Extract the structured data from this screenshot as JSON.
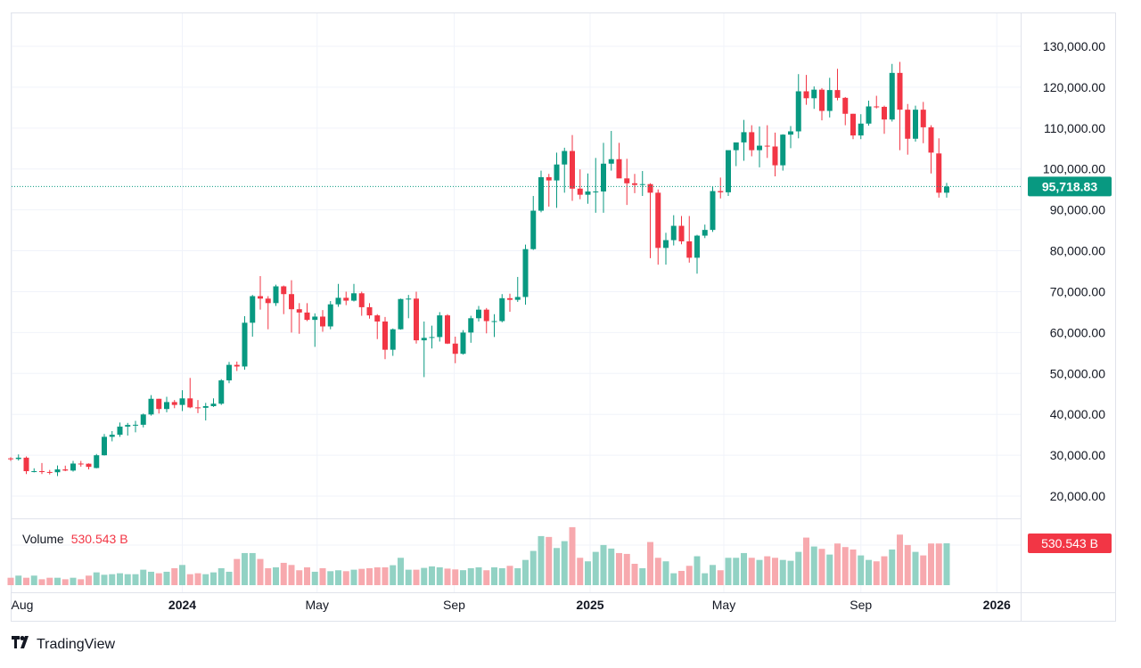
{
  "logo": {
    "text": "TradingView"
  },
  "colors": {
    "up": "#089981",
    "down": "#f23645",
    "up_volume": "#92d2c4",
    "down_volume": "#f7a9ae",
    "last_price_bg": "#089981",
    "volume_label_bg": "#f23645",
    "grid": "#f0f3fa"
  },
  "chart_data": {
    "type": "candlestick",
    "interval": "weekly",
    "y_axis": {
      "ticks": [
        "20,000.00",
        "30,000.00",
        "40,000.00",
        "50,000.00",
        "60,000.00",
        "70,000.00",
        "80,000.00",
        "90,000.00",
        "100,000.00",
        "110,000.00",
        "120,000.00",
        "130,000.00"
      ],
      "tick_values": [
        20000,
        30000,
        40000,
        50000,
        60000,
        70000,
        80000,
        90000,
        100000,
        110000,
        120000,
        130000
      ],
      "range": [
        15000,
        132000
      ]
    },
    "x_axis": {
      "ticks": [
        {
          "label": "Aug",
          "date": "2023-08-01",
          "bold": false
        },
        {
          "label": "2024",
          "date": "2024-01-01",
          "bold": true
        },
        {
          "label": "May",
          "date": "2024-05-01",
          "bold": false
        },
        {
          "label": "Sep",
          "date": "2024-09-01",
          "bold": false
        },
        {
          "label": "2025",
          "date": "2025-01-01",
          "bold": true
        },
        {
          "label": "May",
          "date": "2025-05-01",
          "bold": false
        },
        {
          "label": "Sep",
          "date": "2025-09-01",
          "bold": false
        },
        {
          "label": "2026",
          "date": "2026-01-01",
          "bold": true
        }
      ]
    },
    "last_price": 95718.83,
    "last_price_label": "95,718.83",
    "grid": true,
    "volume": {
      "label": "Volume",
      "value_label": "530.543 B",
      "unit": "B"
    },
    "candles_columns": [
      "date",
      "open",
      "high",
      "low",
      "close",
      "volume_B"
    ],
    "candles": [
      [
        "2023-07-31",
        29230,
        29500,
        28600,
        29070,
        94
      ],
      [
        "2023-08-07",
        29070,
        30200,
        28700,
        29400,
        121
      ],
      [
        "2023-08-14",
        29400,
        29690,
        25400,
        26100,
        94
      ],
      [
        "2023-08-21",
        26100,
        26800,
        25800,
        26100,
        121
      ],
      [
        "2023-08-28",
        26100,
        28100,
        25400,
        25900,
        75
      ],
      [
        "2023-09-04",
        25900,
        26400,
        25300,
        25840,
        94
      ],
      [
        "2023-09-11",
        25840,
        27500,
        24900,
        26530,
        94
      ],
      [
        "2023-09-18",
        26530,
        27450,
        26100,
        26250,
        75
      ],
      [
        "2023-09-25",
        26250,
        28600,
        26000,
        27960,
        94
      ],
      [
        "2023-10-02",
        27960,
        28600,
        27200,
        27920,
        75
      ],
      [
        "2023-10-09",
        27920,
        28000,
        26550,
        27150,
        121
      ],
      [
        "2023-10-16",
        26870,
        30300,
        26800,
        29990,
        162
      ],
      [
        "2023-10-23",
        29990,
        35200,
        29900,
        34500,
        132
      ],
      [
        "2023-10-30",
        34500,
        35900,
        33400,
        35000,
        139
      ],
      [
        "2023-11-06",
        35000,
        38000,
        34500,
        37000,
        151
      ],
      [
        "2023-11-13",
        37000,
        37900,
        34800,
        37400,
        139
      ],
      [
        "2023-11-20",
        37400,
        38400,
        35600,
        37450,
        139
      ],
      [
        "2023-11-27",
        37450,
        40200,
        36800,
        39970,
        196
      ],
      [
        "2023-12-04",
        39970,
        44700,
        39700,
        43800,
        170
      ],
      [
        "2023-12-11",
        43800,
        43800,
        40200,
        41300,
        151
      ],
      [
        "2023-12-18",
        41300,
        44300,
        40500,
        43000,
        170
      ],
      [
        "2023-12-25",
        43000,
        43500,
        41500,
        42300,
        215
      ],
      [
        "2024-01-01",
        42300,
        45900,
        40800,
        43900,
        256
      ],
      [
        "2024-01-08",
        43900,
        48900,
        41500,
        41700,
        139
      ],
      [
        "2024-01-15",
        41700,
        43500,
        40300,
        41600,
        151
      ],
      [
        "2024-01-22",
        41600,
        42800,
        38500,
        42000,
        139
      ],
      [
        "2024-01-29",
        42000,
        43900,
        41800,
        42600,
        162
      ],
      [
        "2024-02-05",
        42600,
        48600,
        42300,
        48300,
        215
      ],
      [
        "2024-02-12",
        48300,
        52800,
        47600,
        52100,
        170
      ],
      [
        "2024-02-19",
        52100,
        52900,
        50600,
        51700,
        332
      ],
      [
        "2024-02-26",
        51700,
        64000,
        50900,
        62400,
        407
      ],
      [
        "2024-03-04",
        62400,
        69200,
        59000,
        68900,
        407
      ],
      [
        "2024-03-11",
        68900,
        73800,
        65600,
        68300,
        332
      ],
      [
        "2024-03-18",
        68300,
        68900,
        60800,
        67200,
        215
      ],
      [
        "2024-03-25",
        67200,
        71700,
        66500,
        71300,
        226
      ],
      [
        "2024-04-01",
        71300,
        71500,
        64500,
        69400,
        283
      ],
      [
        "2024-04-08",
        69400,
        72800,
        60000,
        65700,
        256
      ],
      [
        "2024-04-15",
        65700,
        67200,
        59700,
        64900,
        189
      ],
      [
        "2024-04-22",
        64900,
        67200,
        62800,
        63100,
        226
      ],
      [
        "2024-04-29",
        63100,
        64700,
        56500,
        63900,
        170
      ],
      [
        "2024-05-06",
        63900,
        65500,
        60200,
        61500,
        215
      ],
      [
        "2024-05-13",
        61500,
        67700,
        60800,
        66900,
        177
      ],
      [
        "2024-05-20",
        66900,
        71900,
        66300,
        68500,
        189
      ],
      [
        "2024-05-27",
        68500,
        70000,
        66700,
        67800,
        177
      ],
      [
        "2024-06-03",
        67800,
        71900,
        67600,
        69600,
        196
      ],
      [
        "2024-06-10",
        69600,
        70000,
        64100,
        66200,
        207
      ],
      [
        "2024-06-17",
        66200,
        67200,
        63400,
        64200,
        215
      ],
      [
        "2024-06-24",
        64200,
        64500,
        58400,
        62700,
        226
      ],
      [
        "2024-07-01",
        62700,
        63800,
        53500,
        55800,
        226
      ],
      [
        "2024-07-08",
        55800,
        61000,
        54300,
        60800,
        253
      ],
      [
        "2024-07-15",
        60800,
        68300,
        60700,
        68200,
        347
      ],
      [
        "2024-07-22",
        68200,
        69200,
        63500,
        68300,
        196
      ],
      [
        "2024-07-29",
        68300,
        70000,
        57300,
        58100,
        196
      ],
      [
        "2024-08-05",
        58100,
        62700,
        49100,
        58700,
        219
      ],
      [
        "2024-08-12",
        58700,
        61700,
        56100,
        58900,
        238
      ],
      [
        "2024-08-19",
        58900,
        65000,
        57800,
        64200,
        226
      ],
      [
        "2024-08-26",
        64200,
        64500,
        57200,
        57300,
        210
      ],
      [
        "2024-09-02",
        57300,
        59000,
        52500,
        54800,
        200
      ],
      [
        "2024-09-09",
        54800,
        60600,
        54600,
        60000,
        190
      ],
      [
        "2024-09-16",
        60000,
        64100,
        57500,
        63500,
        215
      ],
      [
        "2024-09-23",
        63500,
        66500,
        62700,
        65600,
        226
      ],
      [
        "2024-09-30",
        65600,
        66000,
        59800,
        62800,
        189
      ],
      [
        "2024-10-07",
        62800,
        64500,
        58900,
        62800,
        226
      ],
      [
        "2024-10-14",
        62800,
        69400,
        62500,
        68400,
        215
      ],
      [
        "2024-10-21",
        68400,
        69500,
        65100,
        68000,
        245
      ],
      [
        "2024-10-28",
        68000,
        73600,
        67500,
        68700,
        215
      ],
      [
        "2024-11-04",
        68700,
        81500,
        66800,
        80400,
        320
      ],
      [
        "2024-11-11",
        80400,
        93400,
        80200,
        89800,
        434
      ],
      [
        "2024-11-18",
        89800,
        99600,
        89400,
        98000,
        622
      ],
      [
        "2024-11-25",
        98000,
        98800,
        90800,
        97200,
        611
      ],
      [
        "2024-12-02",
        97200,
        104000,
        90500,
        101100,
        471
      ],
      [
        "2024-12-09",
        101100,
        105200,
        94200,
        104400,
        558
      ],
      [
        "2024-12-16",
        104400,
        108300,
        92200,
        95200,
        735
      ],
      [
        "2024-12-23",
        95200,
        99900,
        92600,
        93700,
        347
      ],
      [
        "2024-12-30",
        93700,
        98900,
        91500,
        94500,
        302
      ],
      [
        "2025-01-06",
        94500,
        102700,
        89300,
        94500,
        422
      ],
      [
        "2025-01-13",
        94500,
        106400,
        89300,
        101300,
        509
      ],
      [
        "2025-01-20",
        101300,
        109300,
        99600,
        102400,
        464
      ],
      [
        "2025-01-27",
        102400,
        106400,
        97800,
        97700,
        407
      ],
      [
        "2025-02-03",
        97700,
        102500,
        91200,
        96500,
        396
      ],
      [
        "2025-02-10",
        96500,
        98800,
        94100,
        96100,
        271
      ],
      [
        "2025-02-17",
        96100,
        99500,
        93400,
        96300,
        215
      ],
      [
        "2025-02-24",
        96300,
        96500,
        78200,
        94200,
        547
      ],
      [
        "2025-03-03",
        94200,
        95000,
        76600,
        80700,
        347
      ],
      [
        "2025-03-10",
        80700,
        84400,
        76600,
        82600,
        302
      ],
      [
        "2025-03-17",
        82600,
        88700,
        81300,
        86100,
        151
      ],
      [
        "2025-03-24",
        86100,
        88500,
        81600,
        82300,
        181
      ],
      [
        "2025-03-31",
        82300,
        88500,
        77100,
        78300,
        245
      ],
      [
        "2025-04-07",
        78300,
        83900,
        74400,
        83700,
        366
      ],
      [
        "2025-04-14",
        83700,
        86400,
        83100,
        85100,
        151
      ],
      [
        "2025-04-21",
        85100,
        95700,
        84600,
        94600,
        256
      ],
      [
        "2025-04-28",
        94600,
        97900,
        92800,
        94300,
        189
      ],
      [
        "2025-05-05",
        94300,
        104300,
        93400,
        104600,
        347
      ],
      [
        "2025-05-12",
        104600,
        105800,
        100700,
        106500,
        347
      ],
      [
        "2025-05-19",
        106500,
        112000,
        102000,
        109000,
        407
      ],
      [
        "2025-05-26",
        109000,
        110700,
        103100,
        104600,
        347
      ],
      [
        "2025-06-02",
        104600,
        110400,
        100400,
        105700,
        320
      ],
      [
        "2025-06-09",
        105700,
        110700,
        102700,
        105500,
        366
      ],
      [
        "2025-06-16",
        105500,
        108900,
        98200,
        100900,
        347
      ],
      [
        "2025-06-23",
        100900,
        108500,
        99600,
        108400,
        320
      ],
      [
        "2025-06-30",
        108400,
        110500,
        105100,
        109200,
        309
      ],
      [
        "2025-07-07",
        109200,
        123200,
        107500,
        119000,
        422
      ],
      [
        "2025-07-14",
        119000,
        123000,
        115700,
        117300,
        603
      ],
      [
        "2025-07-21",
        117300,
        120200,
        114700,
        119400,
        490
      ],
      [
        "2025-07-28",
        119400,
        119800,
        111900,
        114200,
        460
      ],
      [
        "2025-08-04",
        114200,
        122300,
        112600,
        119300,
        388
      ],
      [
        "2025-08-11",
        119300,
        124500,
        116800,
        117400,
        528
      ],
      [
        "2025-08-18",
        117400,
        117600,
        110700,
        113500,
        483
      ],
      [
        "2025-08-25",
        113500,
        113500,
        107300,
        108200,
        452
      ],
      [
        "2025-09-01",
        108200,
        113400,
        107300,
        111100,
        377
      ],
      [
        "2025-09-08",
        111100,
        116700,
        110600,
        115300,
        320
      ],
      [
        "2025-09-15",
        115300,
        117900,
        114800,
        115200,
        302
      ],
      [
        "2025-09-22",
        115200,
        115500,
        108600,
        112100,
        366
      ],
      [
        "2025-09-29",
        112100,
        125700,
        111600,
        123500,
        452
      ],
      [
        "2025-10-06",
        123500,
        126200,
        104600,
        114500,
        641
      ],
      [
        "2025-10-13",
        114500,
        115900,
        103500,
        107400,
        509
      ],
      [
        "2025-10-20",
        107400,
        115500,
        106700,
        114500,
        422
      ],
      [
        "2025-10-27",
        114500,
        116400,
        106300,
        110200,
        377
      ],
      [
        "2025-11-03",
        110200,
        110700,
        98900,
        104000,
        528
      ],
      [
        "2025-11-10",
        103800,
        107500,
        93000,
        94200,
        528
      ],
      [
        "2025-11-17",
        94200,
        96600,
        93000,
        95718.83,
        530.543
      ]
    ]
  }
}
